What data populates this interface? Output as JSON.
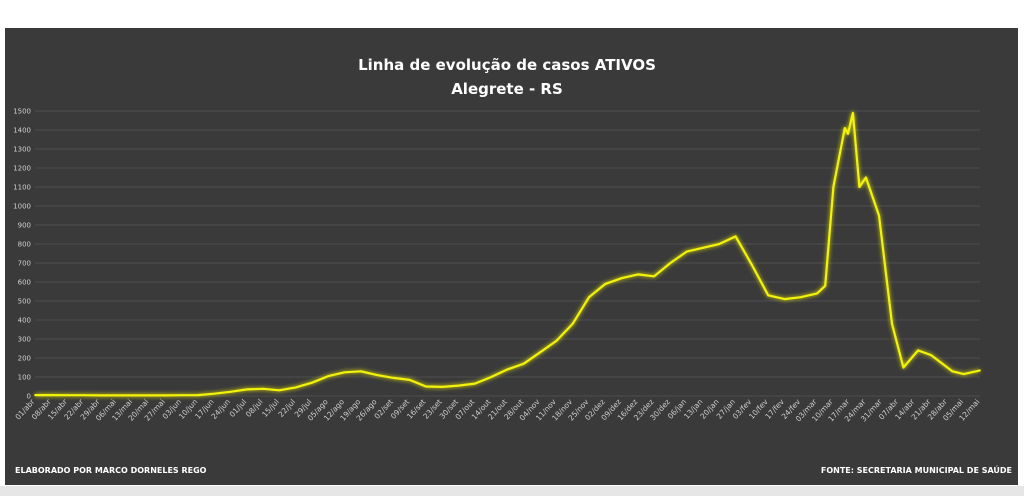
{
  "chart_data": {
    "type": "line",
    "title": "Linha de evolução de casos ATIVOS",
    "subtitle": "Alegrete - RS",
    "footer_left": "ELABORADO POR MARCO DORNELES REGO",
    "footer_right": "FONTE: SECRETARIA MUNICIPAL DE SAÚDE",
    "ylim": [
      0,
      1500
    ],
    "yticks": [
      0,
      100,
      200,
      300,
      400,
      500,
      600,
      700,
      800,
      900,
      1000,
      1100,
      1200,
      1300,
      1400,
      1500
    ],
    "grid": true,
    "x_labels": [
      "01/abr",
      "08/abr",
      "15/abr",
      "22/abr",
      "29/abr",
      "06/mai",
      "13/mai",
      "20/mai",
      "27/mai",
      "03/jun",
      "10/jun",
      "17/jun",
      "24/jun",
      "01/jul",
      "08/jul",
      "15/jul",
      "22/jul",
      "29/jul",
      "05/ago",
      "12/ago",
      "19/ago",
      "26/ago",
      "02/set",
      "09/set",
      "16/set",
      "23/set",
      "30/set",
      "07/out",
      "14/out",
      "21/out",
      "28/out",
      "04/nov",
      "11/nov",
      "18/nov",
      "25/nov",
      "02/dez",
      "09/dez",
      "16/dez",
      "23/dez",
      "30/dez",
      "06/jan",
      "13/jan",
      "20/jan",
      "27/jan",
      "03/fev",
      "10/fev",
      "17/fev",
      "24/fev",
      "03/mar",
      "10/mar",
      "17/mar",
      "24/mar",
      "31/mar",
      "07/abr",
      "14/abr",
      "21/abr",
      "28/abr",
      "05/mai",
      "12/mai"
    ],
    "series": [
      {
        "color": "#f2f20a",
        "values": [
          5,
          5,
          4,
          4,
          3,
          3,
          3,
          3,
          3,
          4,
          5,
          12,
          22,
          35,
          38,
          30,
          45,
          70,
          105,
          125,
          130,
          110,
          95,
          85,
          50,
          48,
          55,
          65,
          100,
          140,
          170,
          230,
          290,
          380,
          520,
          590,
          620,
          640,
          630,
          700,
          760,
          780,
          800,
          840,
          690,
          530,
          510,
          520,
          540,
          580,
          1100,
          1410,
          1380,
          1490,
          1100,
          1150,
          950,
          380,
          150,
          240,
          215,
          130,
          115,
          135
        ],
        "x_index": [
          0,
          1,
          2,
          3,
          4,
          5,
          6,
          7,
          8,
          9,
          10,
          11,
          12,
          13,
          14,
          15,
          16,
          17,
          18,
          19,
          20,
          21,
          22,
          23,
          24,
          25,
          26,
          27,
          28,
          29,
          30,
          31,
          32,
          33,
          34,
          35,
          36,
          37,
          38,
          39,
          40,
          41,
          42,
          43,
          44,
          45,
          46,
          47,
          48,
          48.5,
          49,
          49.7,
          49.9,
          50.2,
          50.6,
          51,
          51.8,
          52.6,
          53.3,
          54.2,
          55,
          56.3,
          57,
          58
        ]
      }
    ]
  }
}
